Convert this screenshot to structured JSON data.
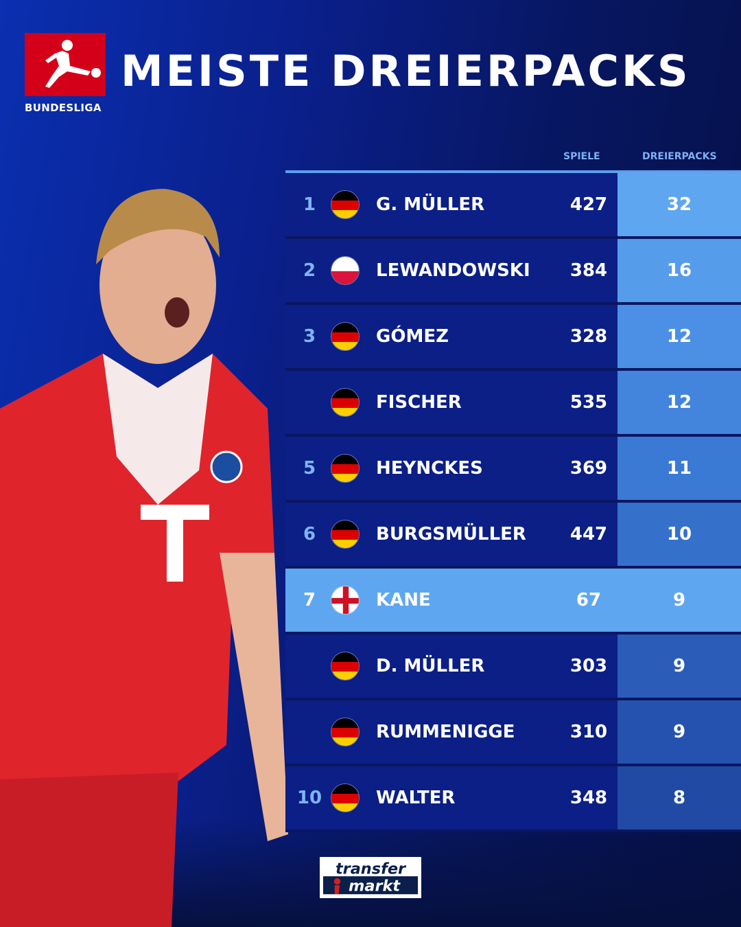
{
  "brand": {
    "league": "BUNDESLIGA",
    "footer_logo": "transfermarkt"
  },
  "title": "MEISTE DREIERPACKS",
  "table": {
    "headers": {
      "games": "SPIELE",
      "hattricks": "DREIERPACKS"
    },
    "rows": [
      {
        "rank": "1",
        "flag": "germany",
        "name": "G. MÜLLER",
        "games": "427",
        "hattricks": "32"
      },
      {
        "rank": "2",
        "flag": "poland",
        "name": "LEWANDOWSKI",
        "games": "384",
        "hattricks": "16"
      },
      {
        "rank": "3",
        "flag": "germany",
        "name": "GÓMEZ",
        "games": "328",
        "hattricks": "12"
      },
      {
        "rank": "",
        "flag": "germany",
        "name": "FISCHER",
        "games": "535",
        "hattricks": "12"
      },
      {
        "rank": "5",
        "flag": "germany",
        "name": "HEYNCKES",
        "games": "369",
        "hattricks": "11"
      },
      {
        "rank": "6",
        "flag": "germany",
        "name": "BURGSMÜLLER",
        "games": "447",
        "hattricks": "10"
      },
      {
        "rank": "7",
        "flag": "england",
        "name": "KANE",
        "games": "67",
        "hattricks": "9",
        "highlight": true
      },
      {
        "rank": "",
        "flag": "germany",
        "name": "D. MÜLLER",
        "games": "303",
        "hattricks": "9"
      },
      {
        "rank": "",
        "flag": "germany",
        "name": "RUMMENIGGE",
        "games": "310",
        "hattricks": "9"
      },
      {
        "rank": "10",
        "flag": "germany",
        "name": "WALTER",
        "games": "348",
        "hattricks": "8"
      }
    ]
  },
  "colors": {
    "highlight": "#5ea6f0",
    "row": "#0b1f86",
    "bundesliga_red": "#d4001a",
    "jersey_red": "#e0242c"
  }
}
